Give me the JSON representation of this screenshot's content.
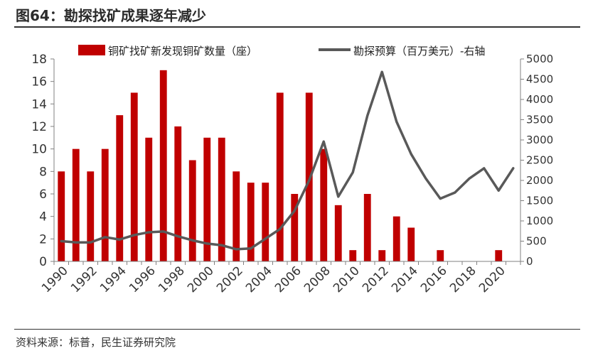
{
  "title": "图64：勘探找矿成果逐年减少",
  "source": "资料来源：标普，民生证券研究院",
  "colors": {
    "bar": "#C00000",
    "line": "#595959",
    "axis": "#808080",
    "text": "#333333"
  },
  "chart_data": {
    "type": "bar",
    "x": [
      1990,
      1991,
      1992,
      1993,
      1994,
      1995,
      1996,
      1997,
      1998,
      1999,
      2000,
      2001,
      2002,
      2003,
      2004,
      2005,
      2006,
      2007,
      2008,
      2009,
      2010,
      2011,
      2012,
      2013,
      2014,
      2015,
      2016,
      2017,
      2018,
      2019,
      2020,
      2021
    ],
    "xticks": [
      "1990",
      "1992",
      "1994",
      "1996",
      "1998",
      "2000",
      "2002",
      "2004",
      "2006",
      "2008",
      "2010",
      "2012",
      "2014",
      "2016",
      "2018",
      "2020"
    ],
    "series": [
      {
        "name": "铜矿找矿新发现铜矿数量（座）",
        "type": "bar",
        "axis": "left",
        "values": [
          8,
          10,
          8,
          10,
          13,
          15,
          11,
          17,
          12,
          9,
          11,
          11,
          8,
          7,
          7,
          15,
          6,
          15,
          10,
          5,
          1,
          6,
          1,
          4,
          3,
          0,
          1,
          0,
          0,
          0,
          1,
          0
        ]
      },
      {
        "name": "勘探预算（百万美元）-右轴",
        "type": "line",
        "axis": "right",
        "values": [
          500,
          470,
          470,
          600,
          540,
          650,
          720,
          740,
          620,
          520,
          440,
          400,
          300,
          320,
          560,
          800,
          1250,
          2000,
          2960,
          1600,
          2200,
          3600,
          4680,
          3450,
          2650,
          2050,
          1550,
          1700,
          2050,
          2300,
          1750,
          2300
        ]
      }
    ],
    "ylim_left": [
      0,
      18
    ],
    "yticks_left": [
      0,
      2,
      4,
      6,
      8,
      10,
      12,
      14,
      16,
      18
    ],
    "ylim_right": [
      0,
      5000
    ],
    "yticks_right": [
      0,
      500,
      1000,
      1500,
      2000,
      2500,
      3000,
      3500,
      4000,
      4500,
      5000
    ],
    "legend": "top",
    "grid": false
  }
}
